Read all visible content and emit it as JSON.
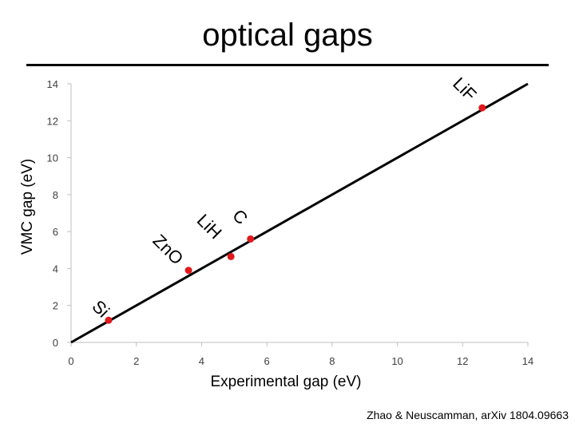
{
  "slide": {
    "title": "optical gaps",
    "citation": "Zhao & Neuscamman, arXiv 1804.09663"
  },
  "colors": {
    "marker": "#e0191b",
    "line": "#000000",
    "axis": "#bfbfbf"
  },
  "chart_data": {
    "type": "scatter",
    "xlabel": "Experimental gap (eV)",
    "ylabel": "VMC gap (eV)",
    "xlim": [
      0,
      14
    ],
    "ylim": [
      0,
      14
    ],
    "xticks": [
      "0",
      "2",
      "4",
      "6",
      "8",
      "10",
      "12",
      "14"
    ],
    "yticks": [
      "0",
      "2",
      "4",
      "6",
      "8",
      "10",
      "12",
      "14"
    ],
    "grid": false,
    "reference_line": {
      "from": [
        0,
        0
      ],
      "to": [
        14,
        14
      ]
    },
    "points": [
      {
        "label": "Si",
        "x": 1.15,
        "y": 1.2
      },
      {
        "label": "ZnO",
        "x": 3.6,
        "y": 3.9
      },
      {
        "label": "LiH",
        "x": 4.9,
        "y": 4.65
      },
      {
        "label": "C",
        "x": 5.5,
        "y": 5.6
      },
      {
        "label": "LiF",
        "x": 12.6,
        "y": 12.7
      }
    ]
  }
}
